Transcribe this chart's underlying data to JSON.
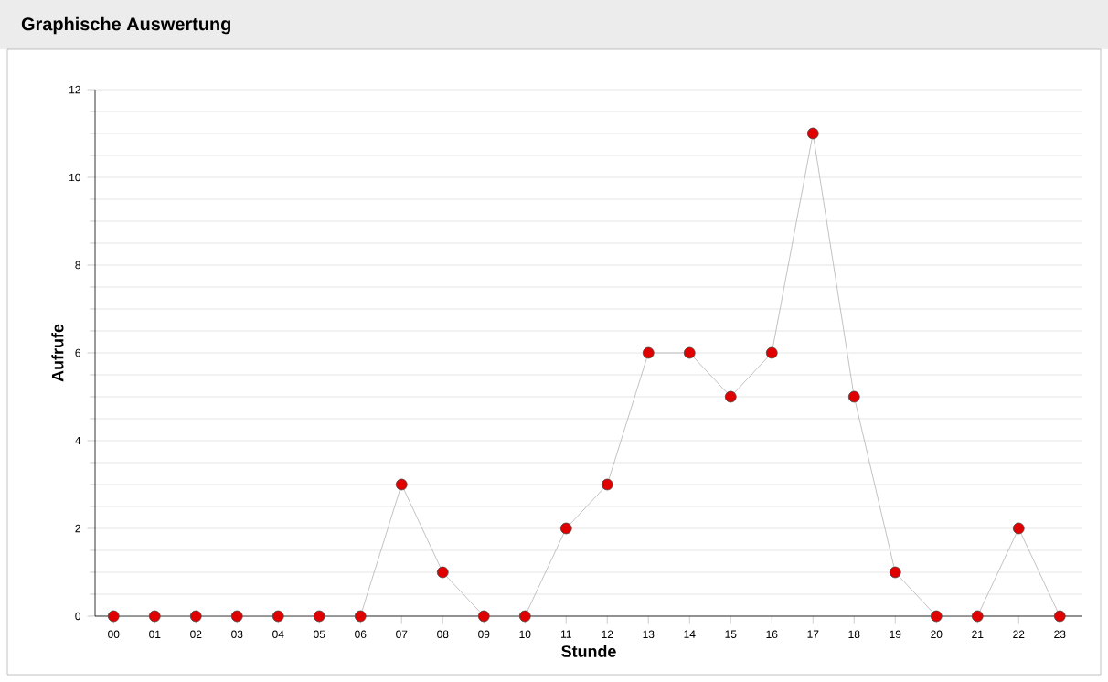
{
  "chart_data": {
    "type": "line",
    "title": "Graphische Auswertung",
    "xlabel": "Stunde",
    "ylabel": "Aufrufe",
    "categories": [
      "00",
      "01",
      "02",
      "03",
      "04",
      "05",
      "06",
      "07",
      "08",
      "09",
      "10",
      "11",
      "12",
      "13",
      "14",
      "15",
      "16",
      "17",
      "18",
      "19",
      "20",
      "21",
      "22",
      "23"
    ],
    "series": [
      {
        "color": "#e00000",
        "values": [
          0,
          0,
          0,
          0,
          0,
          0,
          0,
          3,
          1,
          0,
          0,
          2,
          3,
          6,
          6,
          5,
          6,
          11,
          5,
          1,
          0,
          0,
          2,
          0
        ]
      }
    ],
    "ylim": [
      0,
      12
    ],
    "yticks": [
      0,
      2,
      4,
      6,
      8,
      10,
      12
    ],
    "grid": "y",
    "marker": "circle",
    "line_style": "solid"
  }
}
